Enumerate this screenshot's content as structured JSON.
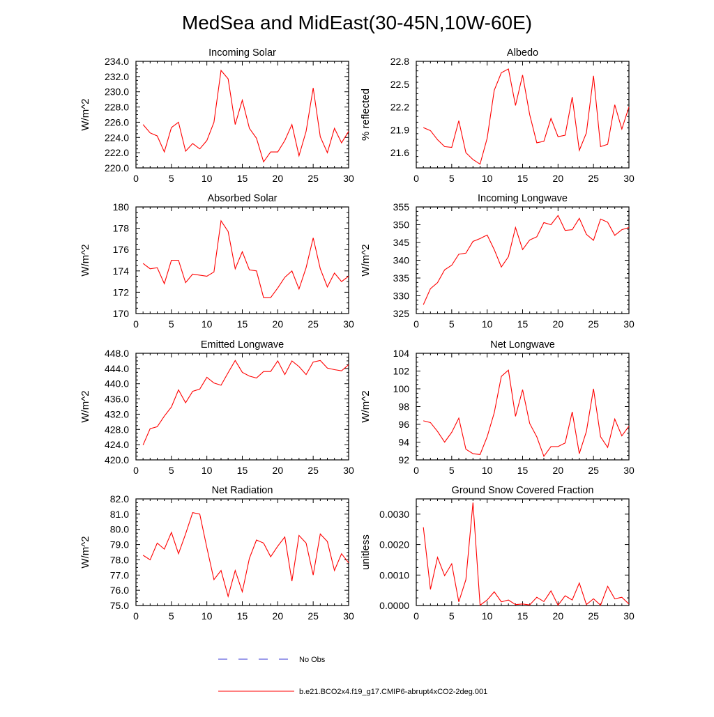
{
  "page": {
    "title": "MedSea and MidEast(30-45N,10W-60E)"
  },
  "chart_data": [
    {
      "type": "line",
      "title": "Incoming Solar",
      "ylabel": "W/m^2",
      "xlim": [
        0,
        30
      ],
      "ylim": [
        220,
        234
      ],
      "xticks": [
        0,
        5,
        10,
        15,
        20,
        25,
        30
      ],
      "yticks": [
        220.0,
        222.0,
        224.0,
        226.0,
        228.0,
        230.0,
        232.0,
        234.0
      ],
      "ytick_labels": [
        "220.0",
        "222.0",
        "224.0",
        "226.0",
        "228.0",
        "230.0",
        "232.0",
        "234.0"
      ],
      "series": [
        {
          "name": "b.e21.BCO2x4.f19_g17.CMIP6-abrupt4xCO2-2deg.001",
          "color": "#ff0000",
          "x": [
            1,
            2,
            3,
            4,
            5,
            6,
            7,
            8,
            9,
            10,
            11,
            12,
            13,
            14,
            15,
            16,
            17,
            18,
            19,
            20,
            21,
            22,
            23,
            24,
            25,
            26,
            27,
            28,
            29,
            30
          ],
          "values": [
            225.7,
            224.6,
            224.2,
            222.1,
            225.3,
            226.0,
            222.2,
            223.2,
            222.5,
            223.6,
            226.0,
            232.8,
            231.7,
            225.7,
            228.9,
            225.2,
            223.9,
            220.8,
            222.1,
            222.1,
            223.6,
            225.7,
            221.6,
            224.8,
            230.5,
            224.1,
            222.0,
            225.2,
            223.3,
            224.8
          ]
        }
      ]
    },
    {
      "type": "line",
      "title": "Albedo",
      "ylabel": "% reflected",
      "xlim": [
        0,
        30
      ],
      "ylim": [
        21.4,
        22.8
      ],
      "xticks": [
        0,
        5,
        10,
        15,
        20,
        25,
        30
      ],
      "yticks": [
        21.6,
        21.9,
        22.2,
        22.5,
        22.8
      ],
      "ytick_labels": [
        "21.6",
        "21.9",
        "22.2",
        "22.5",
        "22.8"
      ],
      "series": [
        {
          "name": "b.e21.BCO2x4.f19_g17.CMIP6-abrupt4xCO2-2deg.001",
          "color": "#ff0000",
          "x": [
            1,
            2,
            3,
            4,
            5,
            6,
            7,
            8,
            9,
            10,
            11,
            12,
            13,
            14,
            15,
            16,
            17,
            18,
            19,
            20,
            21,
            22,
            23,
            24,
            25,
            26,
            27,
            28,
            29,
            30
          ],
          "values": [
            21.93,
            21.89,
            21.77,
            21.68,
            21.67,
            22.02,
            21.6,
            21.51,
            21.45,
            21.79,
            22.42,
            22.65,
            22.7,
            22.22,
            22.62,
            22.1,
            21.73,
            21.75,
            22.05,
            21.81,
            21.83,
            22.33,
            21.63,
            21.86,
            22.61,
            21.68,
            21.71,
            22.23,
            21.91,
            22.2
          ]
        }
      ]
    },
    {
      "type": "line",
      "title": "Absorbed Solar",
      "ylabel": "W/m^2",
      "xlim": [
        0,
        30
      ],
      "ylim": [
        170,
        180
      ],
      "xticks": [
        0,
        5,
        10,
        15,
        20,
        25,
        30
      ],
      "yticks": [
        170,
        172,
        174,
        176,
        178,
        180
      ],
      "ytick_labels": [
        "170",
        "172",
        "174",
        "176",
        "178",
        "180"
      ],
      "series": [
        {
          "name": "b.e21.BCO2x4.f19_g17.CMIP6-abrupt4xCO2-2deg.001",
          "color": "#ff0000",
          "x": [
            1,
            2,
            3,
            4,
            5,
            6,
            7,
            8,
            9,
            10,
            11,
            12,
            13,
            14,
            15,
            16,
            17,
            18,
            19,
            20,
            21,
            22,
            23,
            24,
            25,
            26,
            27,
            28,
            29,
            30
          ],
          "values": [
            174.7,
            174.2,
            174.3,
            172.8,
            175.0,
            175.0,
            172.9,
            173.7,
            173.6,
            173.5,
            173.9,
            178.7,
            177.7,
            174.2,
            175.8,
            174.1,
            174.0,
            171.5,
            171.5,
            172.4,
            173.4,
            174.0,
            172.3,
            174.3,
            177.1,
            174.2,
            172.5,
            173.8,
            173.0,
            173.5
          ]
        }
      ]
    },
    {
      "type": "line",
      "title": "Incoming Longwave",
      "ylabel": "W/m^2",
      "xlim": [
        0,
        30
      ],
      "ylim": [
        325,
        355
      ],
      "xticks": [
        0,
        5,
        10,
        15,
        20,
        25,
        30
      ],
      "yticks": [
        325,
        330,
        335,
        340,
        345,
        350,
        355
      ],
      "ytick_labels": [
        "325",
        "330",
        "335",
        "340",
        "345",
        "350",
        "355"
      ],
      "series": [
        {
          "name": "b.e21.BCO2x4.f19_g17.CMIP6-abrupt4xCO2-2deg.001",
          "color": "#ff0000",
          "x": [
            1,
            2,
            3,
            4,
            5,
            6,
            7,
            8,
            9,
            10,
            11,
            12,
            13,
            14,
            15,
            16,
            17,
            18,
            19,
            20,
            21,
            22,
            23,
            24,
            25,
            26,
            27,
            28,
            29,
            30
          ],
          "values": [
            327.5,
            332.0,
            333.7,
            337.3,
            338.6,
            341.7,
            342.0,
            345.3,
            346.1,
            347.1,
            343.0,
            338.1,
            341.0,
            349.2,
            343.0,
            345.7,
            346.6,
            350.6,
            350.0,
            352.6,
            348.4,
            348.6,
            351.8,
            347.3,
            345.6,
            351.6,
            350.7,
            347.0,
            348.6,
            349.2
          ]
        }
      ]
    },
    {
      "type": "line",
      "title": "Emitted Longwave",
      "ylabel": "W/m^2",
      "xlim": [
        0,
        30
      ],
      "ylim": [
        420,
        448
      ],
      "xticks": [
        0,
        5,
        10,
        15,
        20,
        25,
        30
      ],
      "yticks": [
        420,
        424,
        428,
        432,
        436,
        440,
        444,
        448
      ],
      "ytick_labels": [
        "420.0",
        "424.0",
        "428.0",
        "432.0",
        "436.0",
        "440.0",
        "444.0",
        "448.0"
      ],
      "series": [
        {
          "name": "b.e21.BCO2x4.f19_g17.CMIP6-abrupt4xCO2-2deg.001",
          "color": "#ff0000",
          "x": [
            1,
            2,
            3,
            4,
            5,
            6,
            7,
            8,
            9,
            10,
            11,
            12,
            13,
            14,
            15,
            16,
            17,
            18,
            19,
            20,
            21,
            22,
            23,
            24,
            25,
            26,
            27,
            28,
            29,
            30
          ],
          "values": [
            423.9,
            428.2,
            428.7,
            431.5,
            433.9,
            438.4,
            435.0,
            438.0,
            438.6,
            441.7,
            440.2,
            439.6,
            442.9,
            446.1,
            443.0,
            442.0,
            441.5,
            443.2,
            443.2,
            446.0,
            442.4,
            446.0,
            444.5,
            442.4,
            445.7,
            446.1,
            444.1,
            443.7,
            443.4,
            445.0
          ]
        }
      ]
    },
    {
      "type": "line",
      "title": "Net Longwave",
      "ylabel": "W/m^2",
      "xlim": [
        0,
        30
      ],
      "ylim": [
        92,
        104
      ],
      "xticks": [
        0,
        5,
        10,
        15,
        20,
        25,
        30
      ],
      "yticks": [
        92,
        94,
        96,
        98,
        100,
        102,
        104
      ],
      "ytick_labels": [
        "92",
        "94",
        "96",
        "98",
        "100",
        "102",
        "104"
      ],
      "series": [
        {
          "name": "b.e21.BCO2x4.f19_g17.CMIP6-abrupt4xCO2-2deg.001",
          "color": "#ff0000",
          "x": [
            1,
            2,
            3,
            4,
            5,
            6,
            7,
            8,
            9,
            10,
            11,
            12,
            13,
            14,
            15,
            16,
            17,
            18,
            19,
            20,
            21,
            22,
            23,
            24,
            25,
            26,
            27,
            28,
            29,
            30
          ],
          "values": [
            96.4,
            96.2,
            95.2,
            94.0,
            95.1,
            96.7,
            93.2,
            92.7,
            92.6,
            94.6,
            97.3,
            101.4,
            102.1,
            96.9,
            99.9,
            96.1,
            94.6,
            92.4,
            93.5,
            93.5,
            93.9,
            97.4,
            92.7,
            95.2,
            100.0,
            94.6,
            93.4,
            96.6,
            94.7,
            95.8
          ]
        }
      ]
    },
    {
      "type": "line",
      "title": "Net Radiation",
      "ylabel": "W/m^2",
      "xlim": [
        0,
        30
      ],
      "ylim": [
        75,
        82
      ],
      "xticks": [
        0,
        5,
        10,
        15,
        20,
        25,
        30
      ],
      "yticks": [
        75,
        76,
        77,
        78,
        79,
        80,
        81,
        82
      ],
      "ytick_labels": [
        "75.0",
        "76.0",
        "77.0",
        "78.0",
        "79.0",
        "80.0",
        "81.0",
        "82.0"
      ],
      "series": [
        {
          "name": "b.e21.BCO2x4.f19_g17.CMIP6-abrupt4xCO2-2deg.001",
          "color": "#ff0000",
          "x": [
            1,
            2,
            3,
            4,
            5,
            6,
            7,
            8,
            9,
            10,
            11,
            12,
            13,
            14,
            15,
            16,
            17,
            18,
            19,
            20,
            21,
            22,
            23,
            24,
            25,
            26,
            27,
            28,
            29,
            30
          ],
          "values": [
            78.3,
            78.0,
            79.1,
            78.7,
            79.8,
            78.4,
            79.7,
            81.1,
            81.0,
            78.8,
            76.7,
            77.3,
            75.6,
            77.3,
            75.9,
            78.1,
            79.3,
            79.1,
            78.2,
            78.9,
            79.5,
            76.6,
            79.6,
            79.1,
            77.0,
            79.7,
            79.2,
            77.3,
            78.4,
            77.8
          ]
        }
      ]
    },
    {
      "type": "line",
      "title": "Ground Snow Covered Fraction",
      "ylabel": "unitless",
      "xlim": [
        0,
        30
      ],
      "ylim": [
        0,
        0.0035
      ],
      "xticks": [
        0,
        5,
        10,
        15,
        20,
        25,
        30
      ],
      "yticks": [
        0,
        0.001,
        0.002,
        0.003
      ],
      "ytick_labels": [
        "0.0000",
        "0.0010",
        "0.0020",
        "0.0030"
      ],
      "series": [
        {
          "name": "b.e21.BCO2x4.f19_g17.CMIP6-abrupt4xCO2-2deg.001",
          "color": "#ff0000",
          "x": [
            1,
            2,
            3,
            4,
            5,
            6,
            7,
            8,
            9,
            10,
            11,
            12,
            13,
            14,
            15,
            16,
            17,
            18,
            19,
            20,
            21,
            22,
            23,
            24,
            25,
            26,
            27,
            28,
            29,
            30
          ],
          "values": [
            0.00257,
            0.00053,
            0.00158,
            0.00098,
            0.00137,
            0.00012,
            0.00085,
            0.00338,
            1e-05,
            0.00018,
            0.00045,
            0.00012,
            0.00018,
            3e-05,
            5e-05,
            2e-05,
            0.00027,
            0.00013,
            0.00048,
            1e-05,
            0.00032,
            0.00018,
            0.00074,
            3e-05,
            0.00022,
            1e-05,
            0.00063,
            0.00022,
            0.00027,
            5e-05
          ]
        }
      ]
    }
  ],
  "legend": {
    "entries": [
      {
        "label": "No Obs",
        "color": "#3a3ad6",
        "style": "dashed"
      },
      {
        "label": "b.e21.BCO2x4.f19_g17.CMIP6-abrupt4xCO2-2deg.001",
        "color": "#ff0000",
        "style": "solid"
      }
    ]
  }
}
